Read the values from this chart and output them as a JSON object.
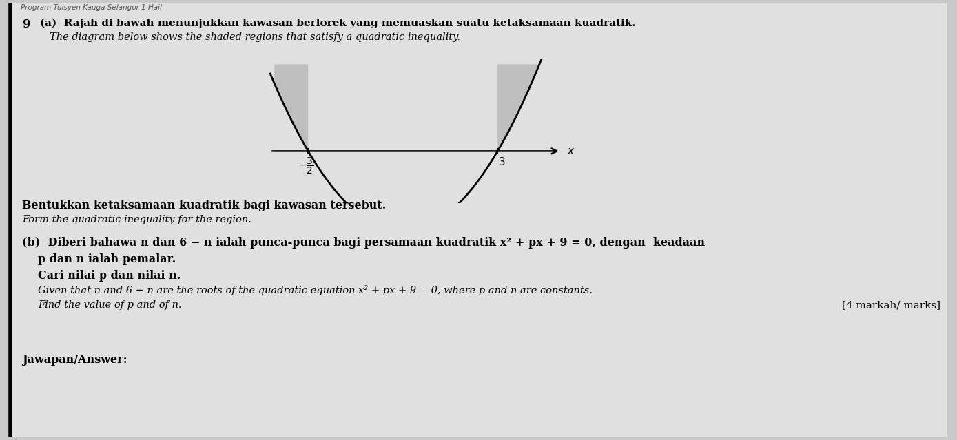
{
  "bg_color": "#c8c8c8",
  "page_color": "#e0e0e0",
  "header_text": "Program Tulsyen Kauga Selangor 1 Hail",
  "q_num": "9",
  "part_a_line1": "(a)  Rajah di bawah menunjukkan kawasan berlorek yang memuaskan suatu ketaksamaan kuadratik.",
  "part_a_line2": "The diagram below shows the shaded regions that satisfy a quadratic inequality.",
  "part_a_inst1": "Bentukkan ketaksamaan kuadratik bagi kawasan tersebut.",
  "part_a_inst2": "Form the quadratic inequality for the region.",
  "part_b_line1": "(b)  Diberi bahawa n dan 6 − n ialah punca-punca bagi persamaan kuadratik x² + px + 9 = 0, dengan  keadaan",
  "part_b_line2": "p dan n ialah pemalar.",
  "part_b_line3": "Cari nilai p dan nilai n.",
  "part_b_line4": "Given that n and 6 − n are the roots of the quadratic equation x² + px + 9 = 0, where p and n are constants.",
  "part_b_line5": "Find the value of p and of n.",
  "marks": "[4 markah/ marks]",
  "answer": "Jawapan/Answer:",
  "root1": -1.5,
  "root2": 3.0,
  "parabola_color": "#000000",
  "shade_color": "#b8b8b8",
  "line_color": "#000000"
}
